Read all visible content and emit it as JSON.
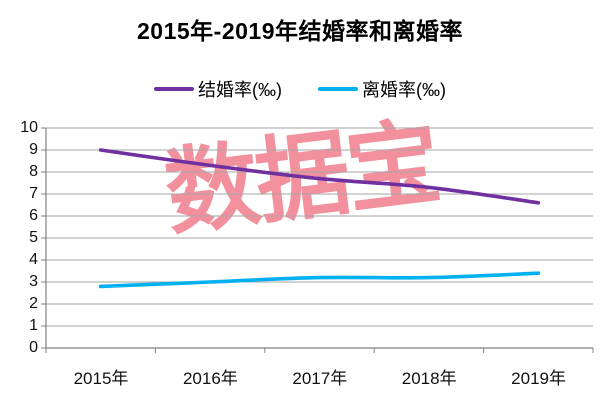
{
  "title": "2015年-2019年结婚率和离婚率",
  "watermark": "数据宝",
  "chart_data": {
    "type": "line",
    "title": "2015年-2019年结婚率和离婚率",
    "categories": [
      "2015年",
      "2016年",
      "2017年",
      "2018年",
      "2019年"
    ],
    "series": [
      {
        "name": "结婚率(‰)",
        "color": "#7030A0",
        "values": [
          9.0,
          8.3,
          7.7,
          7.3,
          6.6
        ]
      },
      {
        "name": "离婚率(‰)",
        "color": "#00B0F0",
        "values": [
          2.8,
          3.0,
          3.2,
          3.2,
          3.4
        ]
      }
    ],
    "xlabel": "",
    "ylabel": "",
    "ylim": [
      0,
      10
    ],
    "ytick_step": 1,
    "yticks": [
      "10",
      "9",
      "8",
      "7",
      "6",
      "5",
      "4",
      "3",
      "2",
      "1",
      "0"
    ],
    "grid": "horizontal",
    "legend_position": "top",
    "line_style": "smooth"
  },
  "colors": {
    "gridline": "#A6A6A6",
    "axis": "#808080",
    "watermark_pink": "#F2919D",
    "text": "#000000",
    "background": "#FFFFFF"
  }
}
